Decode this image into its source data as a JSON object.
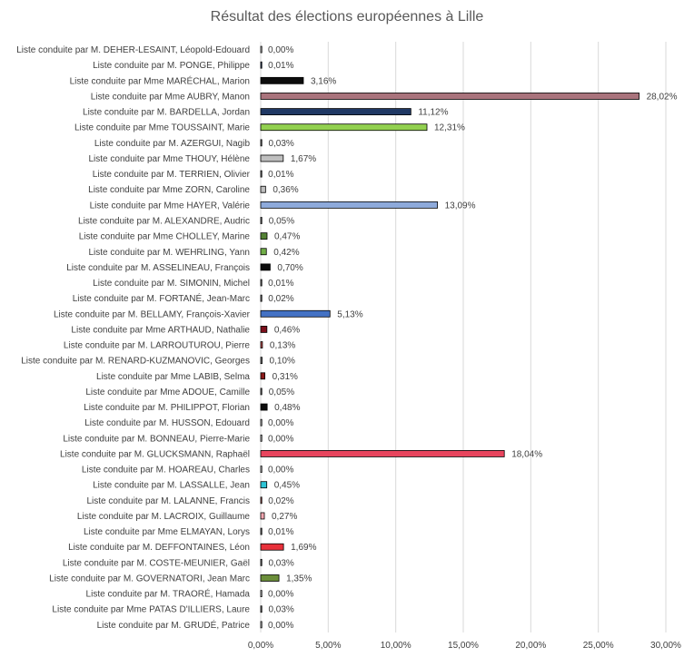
{
  "chart_data": {
    "type": "bar",
    "orientation": "horizontal",
    "title": "Résultat des élections européennes à Lille",
    "xlabel": "",
    "ylabel": "",
    "xlim": [
      0,
      30
    ],
    "grid": true,
    "ticks": [
      "0,00%",
      "5,00%",
      "10,00%",
      "15,00%",
      "20,00%",
      "25,00%",
      "30,00%"
    ],
    "categories": [
      "Liste conduite par M. DEHER-LESAINT, Léopold-Edouard",
      "Liste conduite par M. PONGE, Philippe",
      "Liste conduite par Mme MARÉCHAL, Marion",
      "Liste conduite par Mme AUBRY, Manon",
      "Liste conduite par M. BARDELLA, Jordan",
      "Liste conduite par Mme TOUSSAINT, Marie",
      "Liste conduite par M. AZERGUI, Nagib",
      "Liste conduite par Mme THOUY, Hélène",
      "Liste conduite par M. TERRIEN, Olivier",
      "Liste conduite par Mme ZORN, Caroline",
      "Liste conduite par Mme HAYER, Valérie",
      "Liste conduite par M. ALEXANDRE, Audric",
      "Liste conduite par Mme CHOLLEY, Marine",
      "Liste conduite par M. WEHRLING, Yann",
      "Liste conduite par M. ASSELINEAU, François",
      "Liste conduite par M. SIMONIN, Michel",
      "Liste conduite par M. FORTANÉ, Jean-Marc",
      "Liste conduite par M. BELLAMY, François-Xavier",
      "Liste conduite par Mme ARTHAUD, Nathalie",
      "Liste conduite par M. LARROUTUROU, Pierre",
      "Liste conduite par M. RENARD-KUZMANOVIC, Georges",
      "Liste conduite par Mme LABIB, Selma",
      "Liste conduite par Mme ADOUE, Camille",
      "Liste conduite par M. PHILIPPOT, Florian",
      "Liste conduite par M. HUSSON, Edouard",
      "Liste conduite par M. BONNEAU, Pierre-Marie",
      "Liste conduite par M. GLUCKSMANN, Raphaël",
      "Liste conduite par M. HOAREAU, Charles",
      "Liste conduite par M. LASSALLE, Jean",
      "Liste conduite par M. LALANNE, Francis",
      "Liste conduite par M. LACROIX, Guillaume",
      "Liste conduite par Mme ELMAYAN, Lorys",
      "Liste conduite par M. DEFFONTAINES, Léon",
      "Liste conduite par M. COSTE-MEUNIER, Gaël",
      "Liste conduite par M. GOVERNATORI, Jean Marc",
      "Liste conduite par M. TRAORÉ, Hamada",
      "Liste conduite par Mme PATAS D'ILLIERS, Laure",
      "Liste conduite par M. GRUDÉ, Patrice"
    ],
    "values": [
      0.0,
      0.01,
      3.16,
      28.02,
      11.12,
      12.31,
      0.03,
      1.67,
      0.01,
      0.36,
      13.09,
      0.05,
      0.47,
      0.42,
      0.7,
      0.01,
      0.02,
      5.13,
      0.46,
      0.13,
      0.1,
      0.31,
      0.05,
      0.48,
      0.0,
      0.0,
      18.04,
      0.0,
      0.45,
      0.02,
      0.27,
      0.01,
      1.69,
      0.03,
      1.35,
      0.0,
      0.03,
      0.0
    ],
    "value_labels": [
      "0,00%",
      "0,01%",
      "3,16%",
      "28,02%",
      "11,12%",
      "12,31%",
      "0,03%",
      "1,67%",
      "0,01%",
      "0,36%",
      "13,09%",
      "0,05%",
      "0,47%",
      "0,42%",
      "0,70%",
      "0,01%",
      "0,02%",
      "5,13%",
      "0,46%",
      "0,13%",
      "0,10%",
      "0,31%",
      "0,05%",
      "0,48%",
      "0,00%",
      "0,00%",
      "18,04%",
      "0,00%",
      "0,45%",
      "0,02%",
      "0,27%",
      "0,01%",
      "1,69%",
      "0,03%",
      "1,35%",
      "0,00%",
      "0,03%",
      "0,00%"
    ],
    "colors": [
      "#ffffff",
      "#1f3864",
      "#0d0d0d",
      "#a9737c",
      "#1f3864",
      "#92d050",
      "#7f7f7f",
      "#bfbfbf",
      "#7f7f7f",
      "#bfbfbf",
      "#8eaadb",
      "#7f7f7f",
      "#548235",
      "#70ad47",
      "#0d0d0d",
      "#7f7f7f",
      "#7f7f7f",
      "#4472c4",
      "#7b0f1a",
      "#c0504d",
      "#7f7f7f",
      "#8b1a1a",
      "#7f7f7f",
      "#0d0d0d",
      "#ffffff",
      "#ffffff",
      "#e8455e",
      "#ffffff",
      "#2ec4d6",
      "#c0504d",
      "#f4a6b0",
      "#7f7f7f",
      "#e8303a",
      "#7f7f7f",
      "#6b8e3a",
      "#ffffff",
      "#7f7f7f",
      "#ffffff"
    ]
  }
}
